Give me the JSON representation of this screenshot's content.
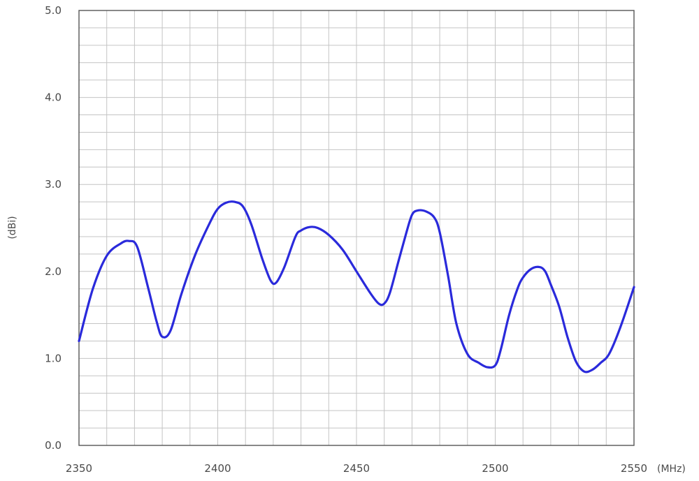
{
  "chart_data": {
    "type": "line",
    "title": "",
    "xlabel": "(MHz)",
    "ylabel": "(dBi)",
    "xlim": [
      2350,
      2550
    ],
    "ylim": [
      0.0,
      5.0
    ],
    "grid": true,
    "legend": "none",
    "x_ticks": [
      "2350",
      "2400",
      "2450",
      "2500",
      "2550"
    ],
    "y_ticks": [
      "0.0",
      "1.0",
      "2.0",
      "3.0",
      "4.0",
      "5.0"
    ],
    "line_color": "#2a2adb",
    "grid_color": "#c4c4c4",
    "series": [
      {
        "x": [
          2350,
          2355,
          2360,
          2365,
          2368,
          2371,
          2375,
          2378,
          2380,
          2383,
          2387,
          2392,
          2397,
          2400,
          2403,
          2406,
          2409,
          2412,
          2416,
          2419,
          2421,
          2424,
          2428,
          2430,
          2433,
          2436,
          2440,
          2445,
          2450,
          2455,
          2458,
          2460,
          2462,
          2465,
          2468,
          2470,
          2472,
          2475,
          2478,
          2480,
          2483,
          2486,
          2490,
          2494,
          2497,
          2500,
          2502,
          2505,
          2508,
          2510,
          2513,
          2516,
          2518,
          2520,
          2523,
          2526,
          2529,
          2532,
          2535,
          2538,
          2541,
          2545,
          2550
        ],
        "y": [
          1.2,
          1.8,
          2.18,
          2.32,
          2.35,
          2.28,
          1.8,
          1.42,
          1.25,
          1.32,
          1.75,
          2.2,
          2.55,
          2.72,
          2.79,
          2.8,
          2.75,
          2.55,
          2.15,
          1.9,
          1.87,
          2.05,
          2.4,
          2.47,
          2.51,
          2.5,
          2.42,
          2.25,
          2.0,
          1.75,
          1.63,
          1.63,
          1.75,
          2.1,
          2.45,
          2.65,
          2.7,
          2.69,
          2.62,
          2.45,
          1.95,
          1.4,
          1.05,
          0.95,
          0.9,
          0.92,
          1.1,
          1.5,
          1.8,
          1.93,
          2.03,
          2.05,
          2.0,
          1.85,
          1.6,
          1.25,
          0.97,
          0.85,
          0.87,
          0.95,
          1.05,
          1.35,
          1.82
        ]
      }
    ]
  }
}
